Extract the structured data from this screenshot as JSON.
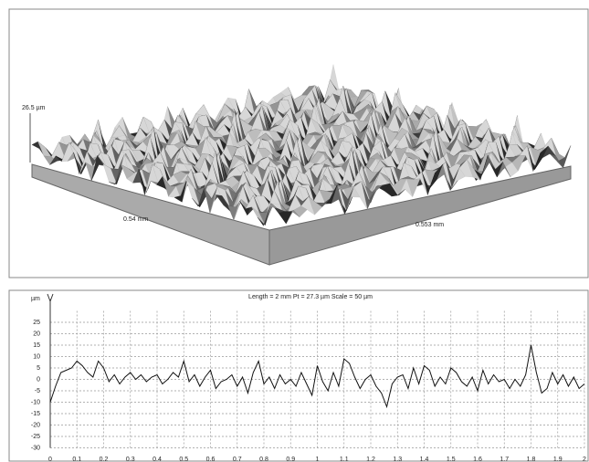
{
  "surface": {
    "height_label": "26.5 µm",
    "x_label": "0.54 mm",
    "y_label": "0.553 mm"
  },
  "chart_data": {
    "type": "line",
    "title": "Length = 2 mm  Pt = 27.3 µm  Scale = 50 µm",
    "y_label": "µm",
    "x": [
      0,
      0.02,
      0.04,
      0.06,
      0.08,
      0.1,
      0.12,
      0.14,
      0.16,
      0.18,
      0.2,
      0.22,
      0.24,
      0.26,
      0.28,
      0.3,
      0.32,
      0.34,
      0.36,
      0.38,
      0.4,
      0.42,
      0.44,
      0.46,
      0.48,
      0.5,
      0.52,
      0.54,
      0.56,
      0.58,
      0.6,
      0.62,
      0.64,
      0.66,
      0.68,
      0.7,
      0.72,
      0.74,
      0.76,
      0.78,
      0.8,
      0.82,
      0.84,
      0.86,
      0.88,
      0.9,
      0.92,
      0.94,
      0.96,
      0.98,
      1,
      1.02,
      1.04,
      1.06,
      1.08,
      1.1,
      1.12,
      1.14,
      1.16,
      1.18,
      1.2,
      1.22,
      1.24,
      1.26,
      1.28,
      1.3,
      1.32,
      1.34,
      1.36,
      1.38,
      1.4,
      1.42,
      1.44,
      1.46,
      1.48,
      1.5,
      1.52,
      1.54,
      1.56,
      1.58,
      1.6,
      1.62,
      1.64,
      1.66,
      1.68,
      1.7,
      1.72,
      1.74,
      1.76,
      1.78,
      1.8,
      1.82,
      1.84,
      1.86,
      1.88,
      1.9,
      1.92,
      1.94,
      1.96,
      1.98,
      2
    ],
    "series": [
      {
        "color": "#111111",
        "values": [
          -10,
          -3,
          3,
          4,
          5,
          8,
          6,
          3,
          1,
          8,
          5,
          -1,
          2,
          -2,
          1,
          3,
          0,
          2,
          -1,
          1,
          2,
          -2,
          0,
          3,
          1,
          8,
          -1,
          2,
          -3,
          1,
          4,
          -4,
          -1,
          0,
          2,
          -3,
          1,
          -6,
          3,
          8,
          -2,
          1,
          -4,
          2,
          -2,
          0,
          -3,
          3,
          -2,
          -7,
          6,
          -1,
          -5,
          3,
          -3,
          9,
          7,
          1,
          -4,
          0,
          2,
          -3,
          -6,
          -12,
          -2,
          1,
          2,
          -4,
          5,
          -2,
          6,
          4,
          -3,
          1,
          -2,
          5,
          3,
          -1,
          -3,
          1,
          -5,
          4,
          -2,
          2,
          -1,
          0,
          -4,
          0,
          -3,
          2,
          15,
          3,
          -6,
          -4,
          3,
          -2,
          2,
          -3,
          1,
          -4,
          -2
        ]
      }
    ],
    "xlim": [
      0,
      2
    ],
    "ylim": [
      -30,
      30
    ],
    "xticks": [
      0,
      0.1,
      0.2,
      0.3,
      0.4,
      0.5,
      0.6,
      0.7,
      0.8,
      0.9,
      1,
      1.1,
      1.2,
      1.3,
      1.4,
      1.5,
      1.6,
      1.7,
      1.8,
      1.9,
      2
    ],
    "yticks": [
      25,
      20,
      15,
      10,
      5,
      0,
      -5,
      -10,
      -15,
      -20,
      -25,
      -30
    ],
    "grid": true
  }
}
